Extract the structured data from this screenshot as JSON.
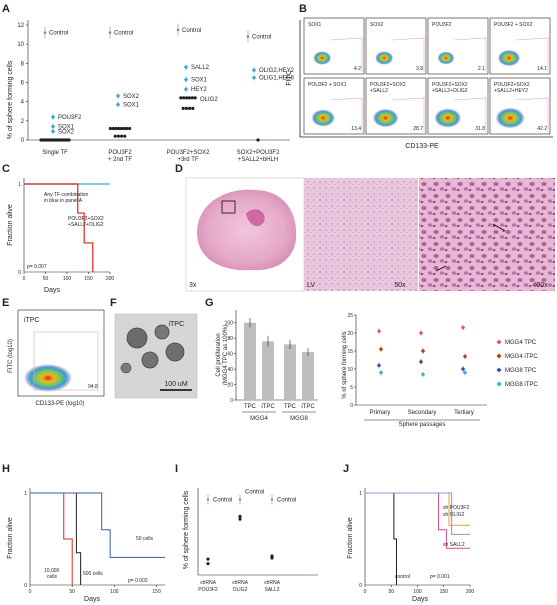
{
  "panel_letters": [
    "A",
    "B",
    "C",
    "D",
    "E",
    "F",
    "G",
    "H",
    "I",
    "J"
  ],
  "panelA": {
    "ylabel": "% of sphere forming cells",
    "yticks": [
      "0",
      "2",
      "4",
      "6",
      "8",
      "10",
      "12"
    ],
    "groups": [
      "Single TF",
      "POU3F2\n+ 2nd TF",
      "POU3F2+SOX2\n+3rd TF",
      "SOX2+POU3F2\n+SALL2+bHLH"
    ],
    "group_lines": [
      [
        "Single TF"
      ],
      [
        "POU3F2",
        "+ 2nd TF"
      ],
      [
        "POU3F2+SOX2",
        "+3rd TF"
      ],
      [
        "SOX2+POU3F2",
        "+SALL2+bHLH"
      ]
    ],
    "control_label": "Control",
    "labels": {
      "g1": [
        "POU3F2",
        "SOX1",
        "SOX2"
      ],
      "g2": [
        "SOX2",
        "SOX1"
      ],
      "g3": [
        "SALL2",
        "SOX1",
        "HEY2",
        "OLIG2"
      ],
      "g4": [
        "OLIG2,HEY2",
        "OLIG1,HES6"
      ]
    },
    "color_highlight": "#3aa7d9"
  },
  "chart_data": [
    {
      "type": "scatter",
      "panel": "A",
      "ylabel": "% of sphere forming cells",
      "ylim": [
        0,
        12
      ],
      "categories": [
        "Single TF",
        "POU3F2 + 2nd TF",
        "POU3F2+SOX2 +3rd TF",
        "SOX2+POU3F2 +SALL2+bHLH"
      ],
      "control": [
        11.2,
        11.2,
        11.5,
        10.8
      ],
      "highlighted": [
        {
          "group": 0,
          "label": "POU3F2",
          "y": 2.4
        },
        {
          "group": 0,
          "label": "SOX1",
          "y": 1.4
        },
        {
          "group": 0,
          "label": "SOX2",
          "y": 0.9
        },
        {
          "group": 1,
          "label": "SOX2",
          "y": 4.6
        },
        {
          "group": 1,
          "label": "SOX1",
          "y": 3.7
        },
        {
          "group": 2,
          "label": "SALL2",
          "y": 7.6
        },
        {
          "group": 2,
          "label": "SOX1",
          "y": 6.3
        },
        {
          "group": 2,
          "label": "HEY2",
          "y": 5.3
        },
        {
          "group": 3,
          "label": "OLIG2,HEY2",
          "y": 7.3
        },
        {
          "group": 3,
          "label": "OLIG1,HES6",
          "y": 6.5
        }
      ],
      "black": [
        {
          "group": 0,
          "y": 0,
          "n": 16
        },
        {
          "group": 1,
          "y": 1.2,
          "n": 8
        },
        {
          "group": 1,
          "y": 0.4,
          "n": 4
        },
        {
          "group": 2,
          "y": 4.4,
          "n": 6
        },
        {
          "group": 2,
          "y": 3.3,
          "n": 4
        },
        {
          "group": 3,
          "y": 0,
          "n": 1
        }
      ],
      "black_label": {
        "group": 2,
        "label": "OLIG2",
        "y": 4.3
      }
    },
    {
      "type": "line",
      "panel": "C",
      "ylabel": "Fraction alive",
      "xlabel": "Days",
      "xticks": [
        0,
        50,
        100,
        150,
        200
      ],
      "yticks": [
        0,
        1
      ],
      "series": [
        {
          "name": "Any TF combination in blue in panel A",
          "x": [
            0,
            200
          ],
          "y": [
            1,
            1
          ]
        },
        {
          "name": "POU3F2+SOX2 +SALL2+OLIG2",
          "x": [
            0,
            125,
            125,
            140,
            140,
            160,
            160
          ],
          "y": [
            1,
            1,
            0.67,
            0.67,
            0.33,
            0.33,
            0
          ]
        }
      ],
      "pvalue": "p= 0.007"
    },
    {
      "type": "bar",
      "panel": "G-left",
      "ylabel": "Cell proliferation (MGG4 TPC as 100%)",
      "categories": [
        "TPC",
        "iTPC",
        "TPC",
        "iTPC"
      ],
      "groups": [
        "MGG4",
        "MGG8"
      ],
      "values": [
        100,
        76,
        72,
        62
      ],
      "errors": [
        6,
        7,
        6,
        5
      ],
      "ylim": [
        0,
        110
      ]
    },
    {
      "type": "scatter",
      "panel": "G-right",
      "ylabel": "% of sphere forming cells",
      "xlabel": "Sphere passages",
      "categories": [
        "Primary",
        "Secondary",
        "Tertiary"
      ],
      "ylim": [
        0,
        25
      ],
      "yticks": [
        0,
        5,
        10,
        15,
        20,
        25
      ],
      "series": [
        {
          "name": "MGG4 TPC",
          "values": [
            20.5,
            20,
            21.5
          ]
        },
        {
          "name": "MGG4 iTPC",
          "values": [
            15.5,
            15,
            13.5
          ]
        },
        {
          "name": "MGG8 TPC",
          "values": [
            11,
            12,
            10
          ]
        },
        {
          "name": "MGG8 iTPC",
          "values": [
            9,
            8.5,
            9
          ]
        }
      ]
    },
    {
      "type": "line",
      "panel": "H",
      "ylabel": "Fraction alive",
      "xlabel": "Days",
      "xticks": [
        0,
        50,
        100,
        150
      ],
      "yticks": [
        0,
        1
      ],
      "series": [
        {
          "name": "10,000 cells",
          "x": [
            0,
            40,
            40,
            50,
            50
          ],
          "y": [
            1,
            1,
            0.5,
            0.5,
            0
          ]
        },
        {
          "name": "500 cells",
          "x": [
            0,
            55,
            55,
            60,
            60
          ],
          "y": [
            1,
            1,
            0.35,
            0.35,
            0
          ]
        },
        {
          "name": "50 cells",
          "x": [
            0,
            85,
            85,
            95,
            95,
            160
          ],
          "y": [
            1,
            1,
            0.6,
            0.6,
            0.3,
            0.3
          ]
        }
      ],
      "pvalue": "p= 0.002"
    },
    {
      "type": "scatter",
      "panel": "I",
      "ylabel": "% of sphere forming cells",
      "categories": [
        "shRNA POU3F2",
        "shRNA OLIG2",
        "shRNA SALL2"
      ],
      "control": [
        {
          "y": 20
        },
        {
          "y": 20
        },
        {
          "y": 20
        }
      ],
      "points": [
        [
          4.2,
          3.0
        ],
        [
          15.5,
          14.8
        ],
        [
          5.0,
          4.5
        ]
      ],
      "ylim": [
        0,
        22
      ]
    },
    {
      "type": "line",
      "panel": "J",
      "ylabel": "Fraction alive",
      "xlabel": "Days",
      "xticks": [
        0,
        50,
        100,
        150,
        200
      ],
      "yticks": [
        0,
        1
      ],
      "series": [
        {
          "name": "control",
          "x": [
            0,
            55,
            55,
            60,
            60
          ],
          "y": [
            1,
            1,
            0.5,
            0.5,
            0
          ]
        },
        {
          "name": "sh SALL2",
          "x": [
            0,
            140,
            140,
            155,
            155,
            200
          ],
          "y": [
            1,
            1,
            0.6,
            0.6,
            0.4,
            0.4
          ]
        },
        {
          "name": "sh POU3F2",
          "x": [
            0,
            160,
            160,
            200
          ],
          "y": [
            1,
            1,
            0.65,
            0.65
          ]
        },
        {
          "name": "sh OLIG2",
          "x": [
            0,
            165,
            165,
            200
          ],
          "y": [
            1,
            1,
            0.55,
            0.55
          ]
        }
      ],
      "pvalue": "p= 0.001"
    }
  ],
  "panelB": {
    "ylabel": "FITC",
    "xlabel": "CD133-PE",
    "plots": [
      {
        "title": "SOX1",
        "value": "4.2"
      },
      {
        "title": "SOX2",
        "value": "3.8"
      },
      {
        "title": "POU3F2",
        "value": "2.1"
      },
      {
        "title": "POU3F2 + SOX2",
        "value": "14.1"
      },
      {
        "title": "POU3F2 + SOX1",
        "value": "13.4"
      },
      {
        "title": "POU3F2+SOX2\n+SALL2",
        "value": "28.7"
      },
      {
        "title": "POU3F2+SOX2\n+SALL2+OLIG2",
        "value": "31.8"
      },
      {
        "title": "POU3F2+SOX2\n+SALL2+HEY2",
        "value": "42.2"
      }
    ]
  },
  "panelC": {
    "ylabel": "Fraction alive",
    "xlabel": "Days",
    "xticks": [
      "0",
      "50",
      "100",
      "150",
      "200"
    ],
    "yticks": [
      "0",
      "1"
    ],
    "legend1": [
      "Any TF combination",
      "in blue in panel A"
    ],
    "legend2": [
      "POU3F2+SOX2",
      "+SALL2+OLIG2"
    ],
    "pvalue": "p= 0.007",
    "color_blue": "#3aa7d9",
    "color_red": "#e2231a"
  },
  "panelD": {
    "mag1": "3x",
    "lv": "LV",
    "mag2": "50x",
    "mag3": "400x"
  },
  "panelE": {
    "title": "iTPC",
    "ylabel": "FITC (log10)",
    "xlabel": "CD133-PE (log10)",
    "value": "94.8"
  },
  "panelF": {
    "title": "iTPC",
    "scale": "100 uM"
  },
  "panelG": {
    "left_ylabel": [
      "Cell proliferation",
      "(MGG4 TPC as 100%)"
    ],
    "left_yticks": [
      "0",
      "20",
      "40",
      "60",
      "80",
      "100"
    ],
    "bars": [
      "TPC",
      "iTPC",
      "TPC",
      "iTPC"
    ],
    "groups": [
      "MGG4",
      "MGG8"
    ],
    "right_ylabel": "% of sphere forming cells",
    "right_yticks": [
      "0",
      "5",
      "10",
      "15",
      "20",
      "25"
    ],
    "right_x": [
      "Primary",
      "Secondary",
      "Tertiary"
    ],
    "right_xlabel": "Sphere passages",
    "legend": [
      {
        "name": "MGG4 TPC",
        "color": "#e8506e"
      },
      {
        "name": "MGG4 iTPC",
        "color": "#a3451c"
      },
      {
        "name": "MGG8 TPC",
        "color": "#3b4fa0"
      },
      {
        "name": "MGG8 iTPC",
        "color": "#2fb0d5"
      }
    ]
  },
  "panelH": {
    "ylabel": "Fraction alive",
    "xlabel": "Days",
    "xticks": [
      "0",
      "50",
      "100",
      "150"
    ],
    "yticks": [
      "0",
      "1"
    ],
    "lbl1": "50 cells",
    "lbl2": [
      "10,000",
      "cells"
    ],
    "lbl3": "500 cells",
    "pvalue": "p= 0.002"
  },
  "panelI": {
    "ylabel": "% of sphere forming cells",
    "control": "Control",
    "x": [
      [
        "shRNA",
        "POU3F2"
      ],
      [
        "shRNA",
        "OLIG2"
      ],
      [
        "shRNA",
        "SALL2"
      ]
    ]
  },
  "panelJ": {
    "ylabel": "Fraction alive",
    "xlabel": "Days",
    "xticks": [
      "0",
      "50",
      "100",
      "150",
      "200"
    ],
    "yticks": [
      "0",
      "1"
    ],
    "lbl_pou": "sh POU3F2",
    "lbl_olig": "sh OLIG2",
    "lbl_sall": "sh SALL2",
    "lbl_ctrl": "control",
    "pvalue": "p= 0.001"
  }
}
